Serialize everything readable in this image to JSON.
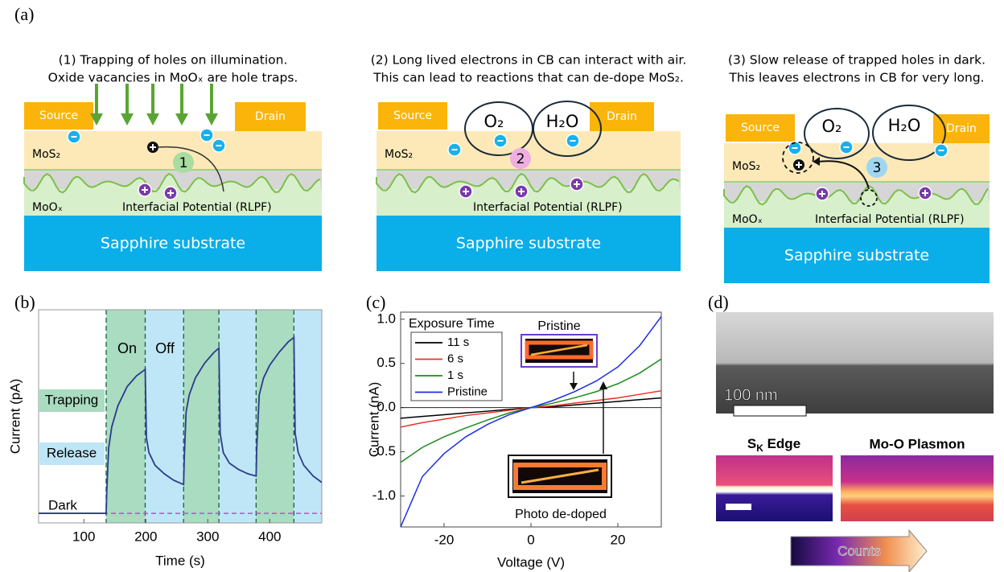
{
  "panel_labels": [
    "(a)",
    "(b)",
    "(c)",
    "(d)"
  ],
  "diagrams": [
    {
      "caption": [
        "(1) Trapping of holes on illumination.",
        "Oxide vacancies in MoOₓ are hole traps."
      ],
      "source": "Source",
      "drain": "Drain",
      "layer_top": "MoS₂",
      "layer_mid": "MoOₓ",
      "potential": "Interfacial Potential (RLPF)",
      "substrate": "Sapphire substrate",
      "step": "1"
    },
    {
      "caption": [
        "(2) Long lived electrons in CB can interact with air.",
        "This can lead to reactions that can de-dope MoS₂."
      ],
      "source": "Source",
      "drain": "Drain",
      "layer_top": "MoS₂",
      "potential": "Interfacial Potential (RLPF)",
      "substrate": "Sapphire substrate",
      "step": "2",
      "molecules": [
        "O₂",
        "H₂O"
      ]
    },
    {
      "caption": [
        "(3) Slow release of trapped holes in dark.",
        "This leaves electrons in CB for very long."
      ],
      "source": "Source",
      "drain": "Drain",
      "layer_top": "MoS₂",
      "layer_mid": "MoOₓ",
      "potential": "Interfacial Potential (RLPF)",
      "substrate": "Sapphire substrate",
      "step": "3",
      "molecules": [
        "O₂",
        "H₂O"
      ]
    }
  ],
  "chart_data": [
    {
      "type": "line",
      "x_label": "Time (s)",
      "y_label": "Current (pA)",
      "xlim": [
        27,
        484
      ],
      "xticks": [
        100,
        200,
        300,
        400
      ],
      "ylim": [
        0,
        1
      ],
      "x": [
        27,
        100,
        136,
        137,
        140,
        145,
        155,
        170,
        185,
        199,
        201,
        205,
        215,
        230,
        245,
        261,
        262,
        265,
        270,
        280,
        295,
        310,
        318,
        320,
        325,
        335,
        350,
        365,
        378,
        379,
        383,
        390,
        400,
        415,
        430,
        439,
        441,
        446,
        455,
        470,
        484
      ],
      "series": [
        {
          "color": "#2b3a8c",
          "values": [
            0.045,
            0.045,
            0.045,
            0.15,
            0.35,
            0.45,
            0.55,
            0.64,
            0.69,
            0.72,
            0.4,
            0.33,
            0.27,
            0.23,
            0.2,
            0.18,
            0.3,
            0.52,
            0.6,
            0.68,
            0.75,
            0.8,
            0.82,
            0.42,
            0.33,
            0.28,
            0.25,
            0.23,
            0.22,
            0.35,
            0.6,
            0.68,
            0.74,
            0.8,
            0.85,
            0.87,
            0.42,
            0.33,
            0.27,
            0.22,
            0.19
          ]
        }
      ],
      "dark_level": 0.045,
      "regions": [
        {
          "start": 136,
          "end": 199,
          "color": "#a9dcc0"
        },
        {
          "start": 199,
          "end": 261,
          "color": "#bfe6f6"
        },
        {
          "start": 261,
          "end": 318,
          "color": "#a9dcc0"
        },
        {
          "start": 318,
          "end": 378,
          "color": "#bfe6f6"
        },
        {
          "start": 378,
          "end": 439,
          "color": "#a9dcc0"
        },
        {
          "start": 439,
          "end": 484,
          "color": "#bfe6f6"
        }
      ],
      "annotations": {
        "on": "On",
        "off": "Off",
        "trapping": "Trapping",
        "release": "Release",
        "dark": "Dark"
      }
    },
    {
      "type": "line",
      "x_label": "Voltage (V)",
      "y_label": "Current  (nA)",
      "xlim": [
        -30,
        30
      ],
      "xticks": [
        -20,
        0,
        20
      ],
      "ylim": [
        -1.35,
        1.08
      ],
      "yticks": [
        {
          "value": -1,
          "label": "-1.0"
        },
        {
          "value": -0.5,
          "label": "-0.5"
        },
        {
          "value": 0,
          "label": "0.0"
        },
        {
          "value": 0.5,
          "label": "0.5"
        },
        {
          "value": 1,
          "label": "1.0"
        }
      ],
      "x": [
        -30,
        -25,
        -20,
        -15,
        -10,
        -5,
        0,
        5,
        10,
        15,
        20,
        25,
        30
      ],
      "legend_title": "Exposure Time",
      "series": [
        {
          "name": "11 s",
          "color": "#000000",
          "values": [
            -0.12,
            -0.1,
            -0.08,
            -0.06,
            -0.04,
            -0.02,
            0,
            0.01,
            0.03,
            0.05,
            0.07,
            0.09,
            0.11
          ]
        },
        {
          "name": "6 s",
          "color": "#e8332a",
          "values": [
            -0.22,
            -0.17,
            -0.13,
            -0.09,
            -0.06,
            -0.03,
            0,
            0.02,
            0.05,
            0.08,
            0.11,
            0.15,
            0.19
          ]
        },
        {
          "name": "1 s",
          "color": "#1a8c1a",
          "values": [
            -0.62,
            -0.45,
            -0.33,
            -0.23,
            -0.14,
            -0.06,
            0,
            0.05,
            0.11,
            0.18,
            0.27,
            0.39,
            0.55
          ]
        },
        {
          "name": "Pristine",
          "color": "#1f2ee8",
          "values": [
            -1.35,
            -0.78,
            -0.52,
            -0.33,
            -0.19,
            -0.08,
            0,
            0.08,
            0.18,
            0.3,
            0.46,
            0.7,
            1.03
          ]
        }
      ],
      "annotations": [
        "Pristine",
        "Photo de-doped"
      ]
    }
  ],
  "image_panel": {
    "scale_bar": "100 nm",
    "maps": [
      {
        "main": "S",
        "sub": "K",
        "rest": " Edge"
      },
      {
        "main": "Mo-O Plasmon"
      }
    ],
    "colorbar": "Counts"
  }
}
